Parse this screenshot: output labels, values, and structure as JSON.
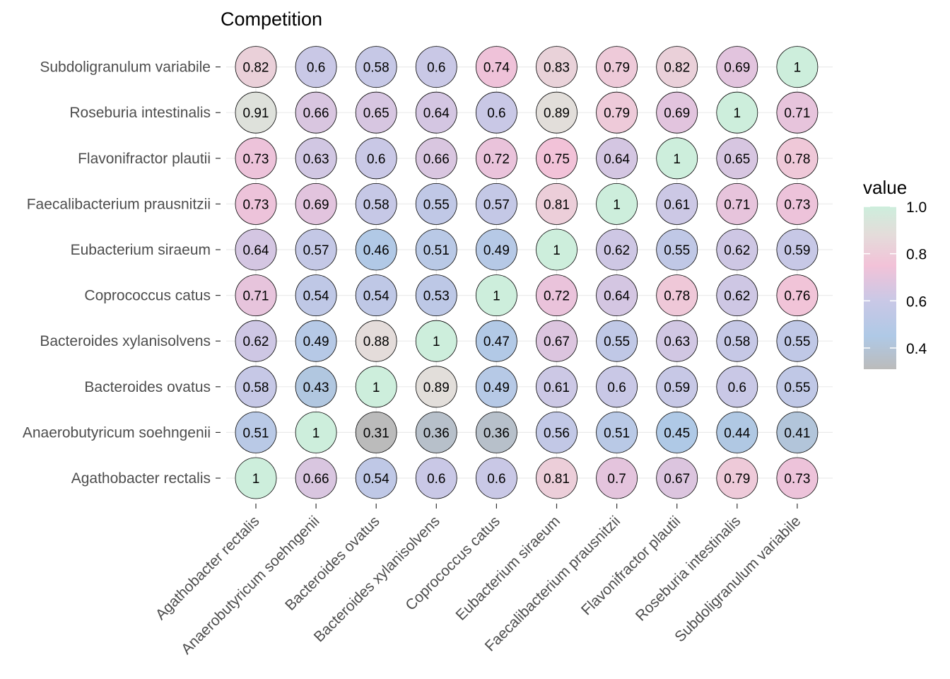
{
  "chart_data": {
    "type": "heatmap",
    "title": "Competition",
    "xlabel": "",
    "ylabel": "",
    "species": [
      "Agathobacter rectalis",
      "Anaerobutyricum soehngenii",
      "Bacteroides ovatus",
      "Bacteroides xylanisolvens",
      "Coprococcus catus",
      "Eubacterium siraeum",
      "Faecalibacterium prausnitzii",
      "Flavonifractor plautii",
      "Roseburia intestinalis",
      "Subdoligranulum variabile"
    ],
    "rows": [
      {
        "name": "Agathobacter rectalis",
        "values": [
          1,
          0.66,
          0.54,
          0.6,
          0.6,
          0.81,
          0.7,
          0.67,
          0.79,
          0.73
        ]
      },
      {
        "name": "Anaerobutyricum soehngenii",
        "values": [
          0.51,
          1,
          0.31,
          0.36,
          0.36,
          0.56,
          0.51,
          0.45,
          0.44,
          0.41
        ]
      },
      {
        "name": "Bacteroides ovatus",
        "values": [
          0.58,
          0.43,
          1,
          0.89,
          0.49,
          0.61,
          0.6,
          0.59,
          0.6,
          0.55
        ]
      },
      {
        "name": "Bacteroides xylanisolvens",
        "values": [
          0.62,
          0.49,
          0.88,
          1,
          0.47,
          0.67,
          0.55,
          0.63,
          0.58,
          0.55
        ]
      },
      {
        "name": "Coprococcus catus",
        "values": [
          0.71,
          0.54,
          0.54,
          0.53,
          1,
          0.72,
          0.64,
          0.78,
          0.62,
          0.76
        ]
      },
      {
        "name": "Eubacterium siraeum",
        "values": [
          0.64,
          0.57,
          0.46,
          0.51,
          0.49,
          1,
          0.62,
          0.55,
          0.62,
          0.59
        ]
      },
      {
        "name": "Faecalibacterium prausnitzii",
        "values": [
          0.73,
          0.69,
          0.58,
          0.55,
          0.57,
          0.81,
          1,
          0.61,
          0.71,
          0.73
        ]
      },
      {
        "name": "Flavonifractor plautii",
        "values": [
          0.73,
          0.63,
          0.6,
          0.66,
          0.72,
          0.75,
          0.64,
          1,
          0.65,
          0.78
        ]
      },
      {
        "name": "Roseburia intestinalis",
        "values": [
          0.91,
          0.66,
          0.65,
          0.64,
          0.6,
          0.89,
          0.79,
          0.69,
          1,
          0.71
        ]
      },
      {
        "name": "Subdoligranulum variabile",
        "values": [
          0.82,
          0.6,
          0.58,
          0.6,
          0.74,
          0.83,
          0.79,
          0.82,
          0.69,
          1
        ]
      }
    ],
    "legend": {
      "title": "value",
      "ticks": [
        1.0,
        0.8,
        0.6,
        0.4
      ],
      "tick_labels": [
        "1.0",
        "0.8",
        "0.6",
        "0.4"
      ],
      "range": [
        0.31,
        1.0
      ],
      "placement": "right"
    },
    "color_scale": {
      "stops": [
        {
          "value": 0.31,
          "color": "#BBBBBB"
        },
        {
          "value": 0.45,
          "color": "#AFC9E6"
        },
        {
          "value": 0.6,
          "color": "#C9C8E6"
        },
        {
          "value": 0.75,
          "color": "#F2C2D8"
        },
        {
          "value": 0.88,
          "color": "#E4DCDA"
        },
        {
          "value": 1.0,
          "color": "#CDEEDC"
        }
      ]
    },
    "grid": true
  }
}
